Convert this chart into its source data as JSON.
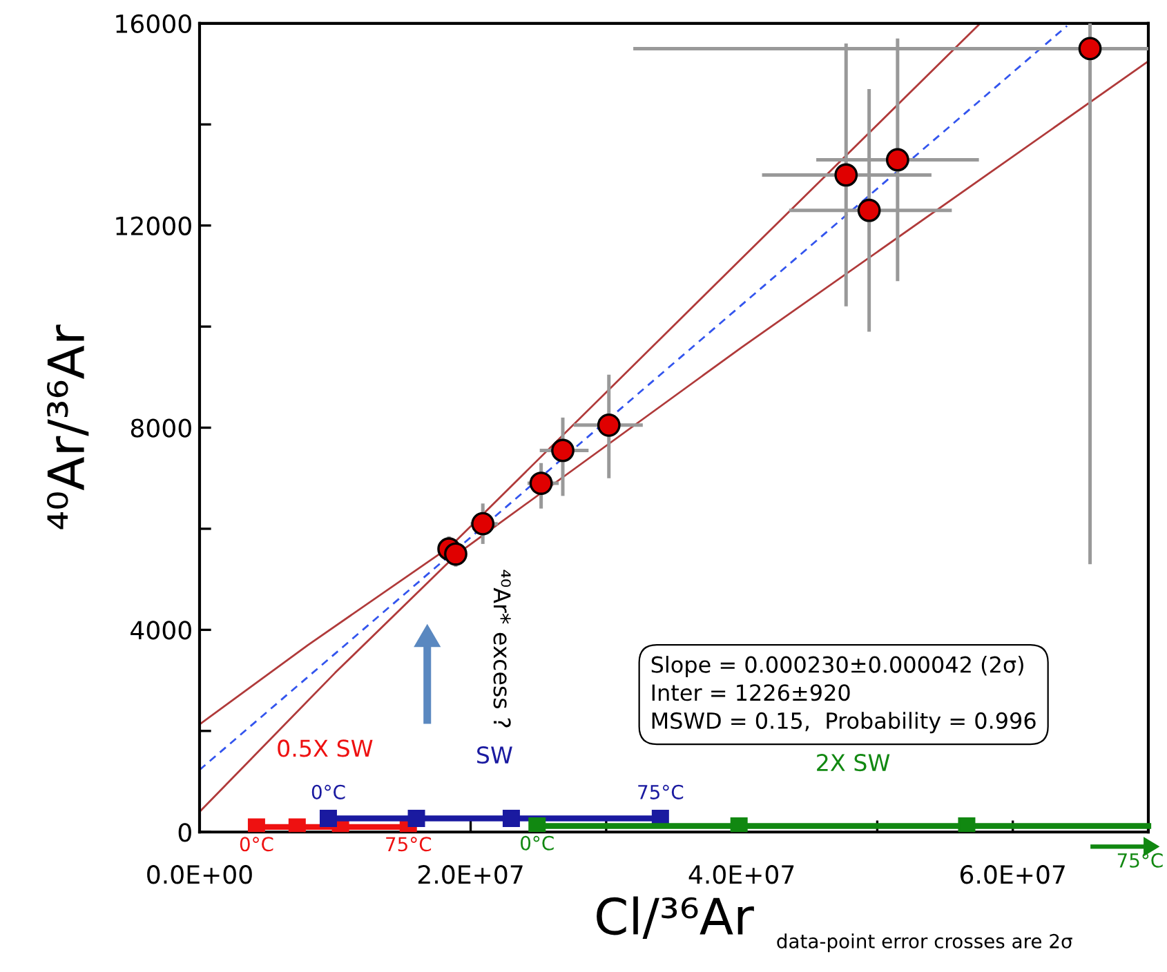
{
  "chart_data": {
    "type": "scatter",
    "xlabel": "Cl/³⁶Ar",
    "ylabel": "⁴⁰Ar/³⁶Ar",
    "xlim": [
      0,
      70000000
    ],
    "ylim": [
      0,
      16000
    ],
    "xticks": [
      {
        "value": 0,
        "label": "0.0E+00"
      },
      {
        "value": 10000000,
        "label": null
      },
      {
        "value": 20000000,
        "label": "2.0E+07"
      },
      {
        "value": 30000000,
        "label": null
      },
      {
        "value": 40000000,
        "label": "4.0E+07"
      },
      {
        "value": 50000000,
        "label": null
      },
      {
        "value": 60000000,
        "label": "6.0E+07"
      }
    ],
    "yticks": [
      0,
      {
        "value": 2000,
        "label": null
      },
      4000,
      {
        "value": 6000,
        "label": null
      },
      8000,
      {
        "value": 10000,
        "label": null
      },
      12000,
      {
        "value": 14000,
        "label": null
      },
      16000
    ],
    "grid": false,
    "series": [
      {
        "color": "#e00000",
        "marker": "circle",
        "x": [
          18400000,
          18900000,
          20900000,
          25200000,
          26800000,
          30200000,
          47700000,
          49400000,
          51500000,
          65700000
        ],
        "values": [
          5600,
          5500,
          6100,
          6900,
          7550,
          8050,
          13000,
          12300,
          13300,
          15500
        ],
        "xerrors": [
          null,
          null,
          [
            20000000,
            22000000
          ],
          [
            24200000,
            26500000
          ],
          [
            25100000,
            28700000
          ],
          [
            27600000,
            32700000
          ],
          [
            41500000,
            54000000
          ],
          [
            43500000,
            55500000
          ],
          [
            45500000,
            57500000
          ],
          [
            32000000,
            70000000
          ]
        ],
        "errors": [
          250,
          250,
          [
            5700,
            6500
          ],
          [
            6400,
            7300
          ],
          [
            6650,
            8200
          ],
          [
            7000,
            9050
          ],
          [
            10400,
            15600
          ],
          [
            9900,
            14700
          ],
          [
            10900,
            15700
          ],
          [
            5300,
            16000
          ]
        ]
      },
      {
        "type": "line",
        "color": "#3355ee",
        "line_style": "dashed",
        "x": [
          0,
          64000000
        ],
        "values": [
          1230,
          15950
        ]
      },
      {
        "type": "line",
        "color": "#b03a3a",
        "line_style": "solid",
        "x": [
          0,
          8000000,
          18500000,
          40000000,
          57600000
        ],
        "values": [
          2130,
          3700,
          5650,
          11350,
          16000
        ]
      },
      {
        "type": "line",
        "color": "#b03a3a",
        "line_style": "solid",
        "x": [
          0,
          10000000,
          19000000,
          40000000,
          70000000
        ],
        "values": [
          400,
          3150,
          5500,
          9590,
          15250
        ]
      },
      {
        "type": "line",
        "name": "0.5X SW",
        "color": "#ee1111",
        "marker": "square",
        "x": [
          4200000,
          7200000,
          10400000,
          15400000
        ],
        "values": [
          100,
          100,
          100,
          100
        ]
      },
      {
        "type": "line",
        "name": "SW",
        "color": "#1a1aa0",
        "marker": "square",
        "x": [
          9500000,
          16000000,
          23000000,
          34000000
        ],
        "values": [
          270,
          270,
          270,
          270
        ]
      },
      {
        "type": "line",
        "name": "2X SW",
        "color": "#118811",
        "marker": "square",
        "x": [
          24900000,
          39800000,
          56600000,
          70000000
        ],
        "values": [
          120,
          120,
          120,
          120
        ]
      }
    ],
    "annotations": [
      "Slope = 0.000230±0.000042 (2σ)\nInter = 1226±920\nMSWD = 0.15,  Probability = 0.996",
      "⁴⁰Ar* excess ?",
      {
        "text": "0°C",
        "x": 4200000,
        "y": 100
      },
      {
        "text": "75°C",
        "x": 15400000,
        "y": 100
      },
      {
        "text": "0°C",
        "x": 9500000,
        "y": 270
      },
      {
        "text": "75°C",
        "x": 34000000,
        "y": 270
      },
      {
        "text": "0°C",
        "x": 24900000,
        "y": 120
      },
      {
        "text": "75°C",
        "x": 70000000,
        "y": 120
      },
      "data-point error crosses are 2σ"
    ]
  }
}
